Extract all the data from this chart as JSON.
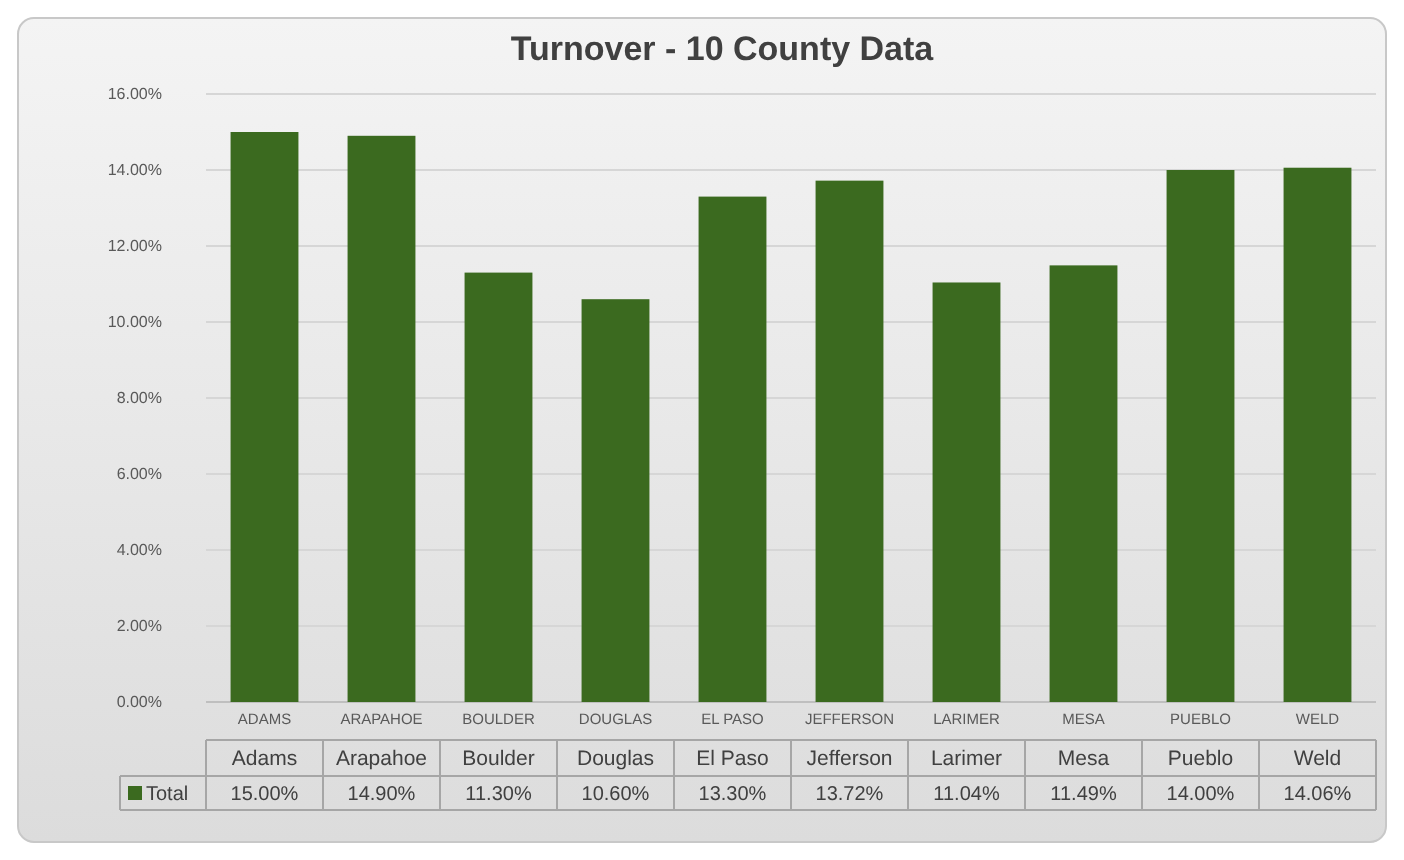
{
  "chart_data": {
    "type": "bar",
    "title": "Turnover - 10 County Data",
    "categories": [
      "ADAMS",
      "ARAPAHOE",
      "BOULDER",
      "DOUGLAS",
      "EL PASO",
      "JEFFERSON",
      "LARIMER",
      "MESA",
      "PUEBLO",
      "WELD"
    ],
    "annotations": [
      "Adams",
      "Arapahoe",
      "Boulder",
      "Douglas",
      "El Paso",
      "Jefferson",
      "Larimer",
      "Mesa",
      "Pueblo",
      "Weld"
    ],
    "series": [
      {
        "name": "Total",
        "color": "#3b6a1f",
        "values": [
          15.0,
          14.9,
          11.3,
          10.6,
          13.3,
          13.72,
          11.04,
          11.49,
          14.0,
          14.06
        ],
        "value_labels": [
          "15.00%",
          "14.90%",
          "11.30%",
          "10.60%",
          "13.30%",
          "13.72%",
          "11.04%",
          "11.49%",
          "14.00%",
          "14.06%"
        ]
      }
    ],
    "ylim": [
      0,
      16
    ],
    "yticks": [
      {
        "value": 0,
        "label": "0.00%"
      },
      {
        "value": 2,
        "label": "2.00%"
      },
      {
        "value": 4,
        "label": "4.00%"
      },
      {
        "value": 6,
        "label": "6.00%"
      },
      {
        "value": 8,
        "label": "8.00%"
      },
      {
        "value": 10,
        "label": "10.00%"
      },
      {
        "value": 12,
        "label": "12.00%"
      },
      {
        "value": 14,
        "label": "14.00%"
      },
      {
        "value": 16,
        "label": "16.00%"
      }
    ],
    "grid": "y",
    "legend": "bottom"
  }
}
